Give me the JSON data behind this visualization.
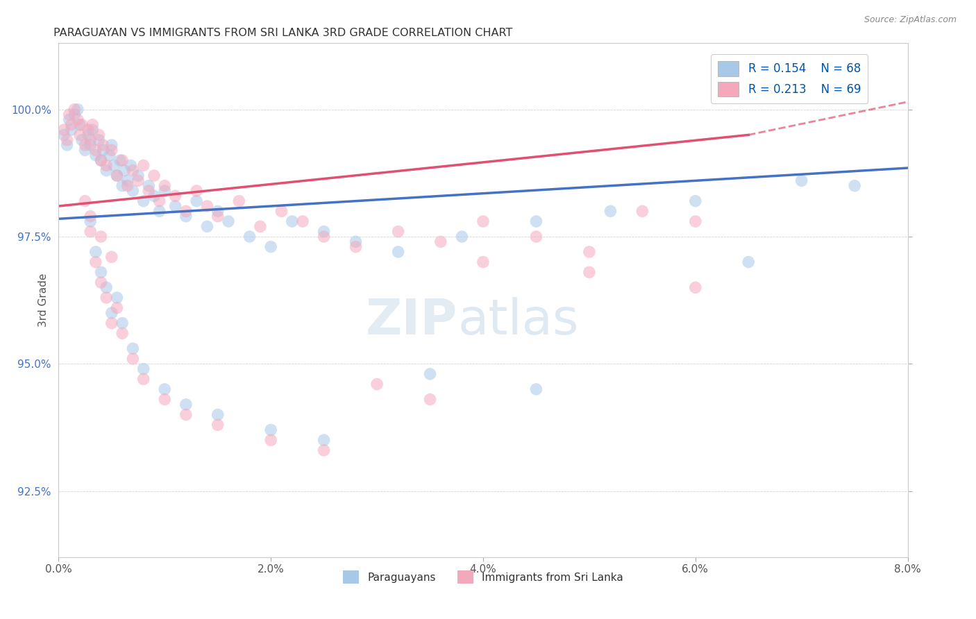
{
  "title": "PARAGUAYAN VS IMMIGRANTS FROM SRI LANKA 3RD GRADE CORRELATION CHART",
  "source_text": "Source: ZipAtlas.com",
  "xlabel_ticks": [
    "0.0%",
    "2.0%",
    "4.0%",
    "6.0%",
    "8.0%"
  ],
  "xlabel_tick_vals": [
    0.0,
    2.0,
    4.0,
    6.0,
    8.0
  ],
  "ylabel_ticks": [
    "92.5%",
    "95.0%",
    "97.5%",
    "100.0%"
  ],
  "ylabel_tick_vals": [
    92.5,
    95.0,
    97.5,
    100.0
  ],
  "xlim": [
    0.0,
    8.0
  ],
  "ylim": [
    91.2,
    101.3
  ],
  "ylabel": "3rd Grade",
  "blue_R": 0.154,
  "blue_N": 68,
  "pink_R": 0.213,
  "pink_N": 69,
  "blue_color": "#A8C8E8",
  "pink_color": "#F4A8BC",
  "blue_line_color": "#4472C4",
  "pink_line_color": "#E05070",
  "legend_label_blue": "Paraguayans",
  "legend_label_pink": "Immigrants from Sri Lanka",
  "watermark_zip": "ZIP",
  "watermark_atlas": "atlas",
  "blue_trend_x0": 0.0,
  "blue_trend_y0": 97.85,
  "blue_trend_x1": 8.0,
  "blue_trend_y1": 98.85,
  "pink_trend_x0": 0.0,
  "pink_trend_y0": 98.1,
  "pink_trend_x1": 6.5,
  "pink_trend_y1": 99.5,
  "pink_dash_x0": 6.5,
  "pink_dash_y0": 99.5,
  "pink_dash_x1": 8.0,
  "pink_dash_y1": 100.15,
  "blue_scatter_x": [
    0.05,
    0.08,
    0.1,
    0.12,
    0.15,
    0.18,
    0.2,
    0.22,
    0.25,
    0.28,
    0.3,
    0.32,
    0.35,
    0.38,
    0.4,
    0.42,
    0.45,
    0.48,
    0.5,
    0.52,
    0.55,
    0.58,
    0.6,
    0.62,
    0.65,
    0.68,
    0.7,
    0.75,
    0.8,
    0.85,
    0.9,
    0.95,
    1.0,
    1.1,
    1.2,
    1.3,
    1.4,
    1.5,
    1.6,
    1.8,
    2.0,
    2.2,
    2.5,
    2.8,
    3.2,
    3.8,
    4.5,
    5.2,
    6.0,
    7.0,
    0.3,
    0.35,
    0.4,
    0.45,
    0.5,
    0.55,
    0.6,
    0.7,
    0.8,
    1.0,
    1.2,
    1.5,
    2.0,
    2.5,
    3.5,
    4.5,
    6.5,
    7.5
  ],
  "blue_scatter_y": [
    99.5,
    99.3,
    99.8,
    99.6,
    99.9,
    100.0,
    99.7,
    99.4,
    99.2,
    99.5,
    99.3,
    99.6,
    99.1,
    99.4,
    99.0,
    99.2,
    98.8,
    99.1,
    99.3,
    98.9,
    98.7,
    99.0,
    98.5,
    98.8,
    98.6,
    98.9,
    98.4,
    98.7,
    98.2,
    98.5,
    98.3,
    98.0,
    98.4,
    98.1,
    97.9,
    98.2,
    97.7,
    98.0,
    97.8,
    97.5,
    97.3,
    97.8,
    97.6,
    97.4,
    97.2,
    97.5,
    97.8,
    98.0,
    98.2,
    98.6,
    97.8,
    97.2,
    96.8,
    96.5,
    96.0,
    96.3,
    95.8,
    95.3,
    94.9,
    94.5,
    94.2,
    94.0,
    93.7,
    93.5,
    94.8,
    94.5,
    97.0,
    98.5
  ],
  "pink_scatter_x": [
    0.05,
    0.08,
    0.1,
    0.12,
    0.15,
    0.18,
    0.2,
    0.22,
    0.25,
    0.28,
    0.3,
    0.32,
    0.35,
    0.38,
    0.4,
    0.42,
    0.45,
    0.5,
    0.55,
    0.6,
    0.65,
    0.7,
    0.75,
    0.8,
    0.85,
    0.9,
    0.95,
    1.0,
    1.1,
    1.2,
    1.3,
    1.4,
    1.5,
    1.7,
    1.9,
    2.1,
    2.3,
    2.5,
    2.8,
    3.2,
    3.6,
    4.0,
    4.5,
    5.0,
    5.5,
    6.0,
    0.3,
    0.35,
    0.4,
    0.45,
    0.5,
    0.55,
    0.6,
    0.7,
    0.8,
    1.0,
    1.2,
    1.5,
    2.0,
    2.5,
    3.0,
    3.5,
    4.0,
    5.0,
    6.0,
    0.25,
    0.3,
    0.4,
    0.5
  ],
  "pink_scatter_y": [
    99.6,
    99.4,
    99.9,
    99.7,
    100.0,
    99.8,
    99.5,
    99.7,
    99.3,
    99.6,
    99.4,
    99.7,
    99.2,
    99.5,
    99.0,
    99.3,
    98.9,
    99.2,
    98.7,
    99.0,
    98.5,
    98.8,
    98.6,
    98.9,
    98.4,
    98.7,
    98.2,
    98.5,
    98.3,
    98.0,
    98.4,
    98.1,
    97.9,
    98.2,
    97.7,
    98.0,
    97.8,
    97.5,
    97.3,
    97.6,
    97.4,
    97.8,
    97.5,
    97.2,
    98.0,
    97.8,
    97.6,
    97.0,
    96.6,
    96.3,
    95.8,
    96.1,
    95.6,
    95.1,
    94.7,
    94.3,
    94.0,
    93.8,
    93.5,
    93.3,
    94.6,
    94.3,
    97.0,
    96.8,
    96.5,
    98.2,
    97.9,
    97.5,
    97.1
  ]
}
